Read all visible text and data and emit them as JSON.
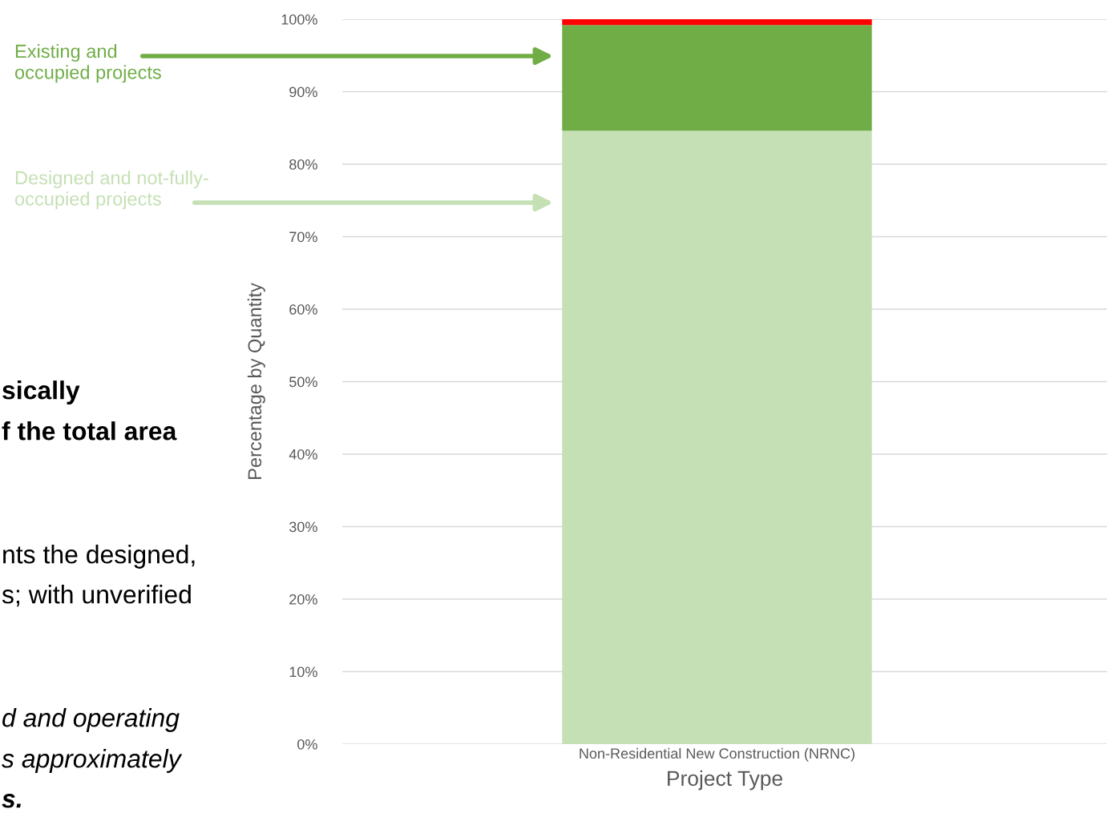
{
  "chart_data": {
    "type": "bar",
    "stacked": true,
    "xlabel": "Project Type",
    "ylabel": "Percentage by Quantity",
    "categories": [
      "Non-Residential New Construction (NRNC)"
    ],
    "series": [
      {
        "name": "Designed and not-fully-\noccupied projects",
        "color": "#c5e0b4",
        "values": [
          84.6
        ]
      },
      {
        "name": "Existing and\noccupied projects",
        "color": "#70ad47",
        "values": [
          14.6
        ]
      },
      {
        "color": "#ff0000",
        "values": [
          0.8
        ]
      }
    ],
    "ylim": [
      0,
      100
    ],
    "yticks": [
      {
        "value": 0,
        "label": "0%"
      },
      {
        "value": 10,
        "label": "10%"
      },
      {
        "value": 20,
        "label": "20%"
      },
      {
        "value": 30,
        "label": "30%"
      },
      {
        "value": 40,
        "label": "40%"
      },
      {
        "value": 50,
        "label": "50%"
      },
      {
        "value": 60,
        "label": "60%"
      },
      {
        "value": 70,
        "label": "70%"
      },
      {
        "value": 80,
        "label": "80%"
      },
      {
        "value": 90,
        "label": "90%"
      },
      {
        "value": 100,
        "label": "100%"
      }
    ],
    "grid": "y",
    "legend": false,
    "annotations": [
      "sically",
      "f the total area",
      "nts the designed,",
      "s; with unverified",
      "d and operating",
      "s approximately",
      "s."
    ]
  }
}
